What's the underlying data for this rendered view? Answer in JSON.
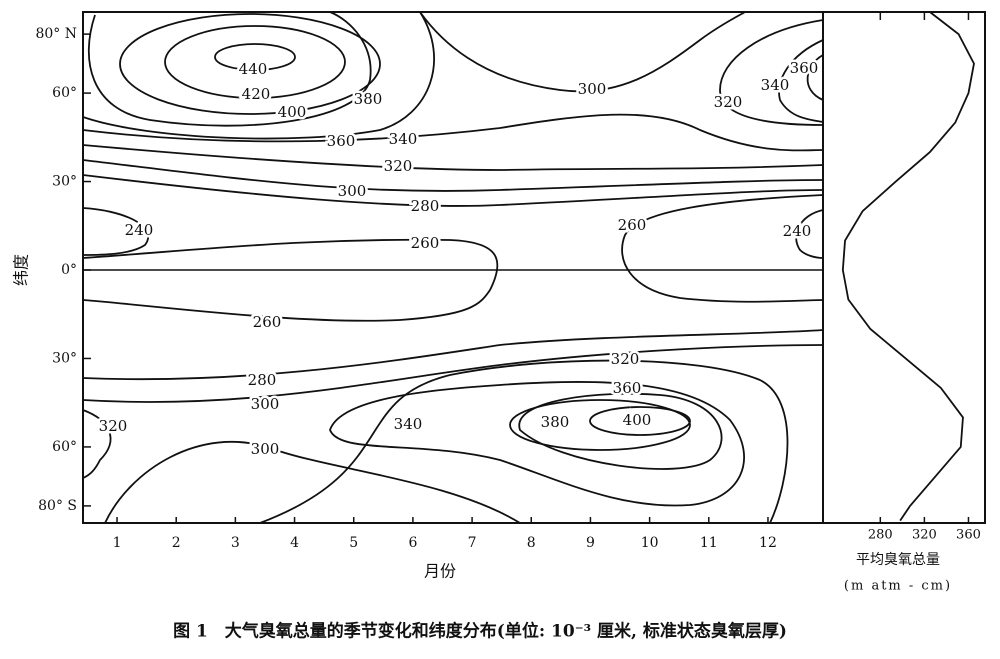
{
  "chart_data": {
    "type": "contour",
    "xlabel": "月份",
    "ylabel": "纬度",
    "xlim": [
      0.425,
      12.93
    ],
    "xticks": [
      1,
      2,
      3,
      4,
      5,
      6,
      7,
      8,
      9,
      10,
      11,
      12
    ],
    "ylim": [
      -85.8,
      87.5
    ],
    "yticks": [
      {
        "value": 80,
        "label": "80° N"
      },
      {
        "value": 60,
        "label": "60°"
      },
      {
        "value": 30,
        "label": "30°"
      },
      {
        "value": 0,
        "label": "0°"
      },
      {
        "value": -30,
        "label": "30°"
      },
      {
        "value": -60,
        "label": "60°"
      },
      {
        "value": -80,
        "label": "80° S"
      }
    ],
    "contour_labels": [
      440,
      420,
      400,
      380,
      360,
      340,
      320,
      300,
      280,
      260,
      240,
      300,
      320,
      340,
      360,
      260,
      240,
      260,
      280,
      300,
      320,
      300,
      340,
      380,
      400,
      360,
      320
    ],
    "profile": {
      "type": "line",
      "xlabel": "平均臭氧总量",
      "unit": "(m atm - cm)",
      "xlim": [
        228,
        375
      ],
      "xticks": [
        280,
        320,
        360
      ],
      "latitude": [
        87.5,
        80,
        70,
        60,
        50,
        40,
        30,
        20,
        10,
        0,
        -10,
        -20,
        -30,
        -40,
        -50,
        -60,
        -70,
        -80,
        -85
      ],
      "values": [
        325,
        351,
        365,
        360,
        348,
        325,
        294,
        264,
        248,
        246,
        251,
        271,
        303,
        335,
        355,
        353,
        330,
        307,
        298
      ]
    }
  },
  "caption": "图 1　大气臭氧总量的季节变化和纬度分布(单位: 10⁻³ 厘米, 标准状态臭氧层厚)"
}
